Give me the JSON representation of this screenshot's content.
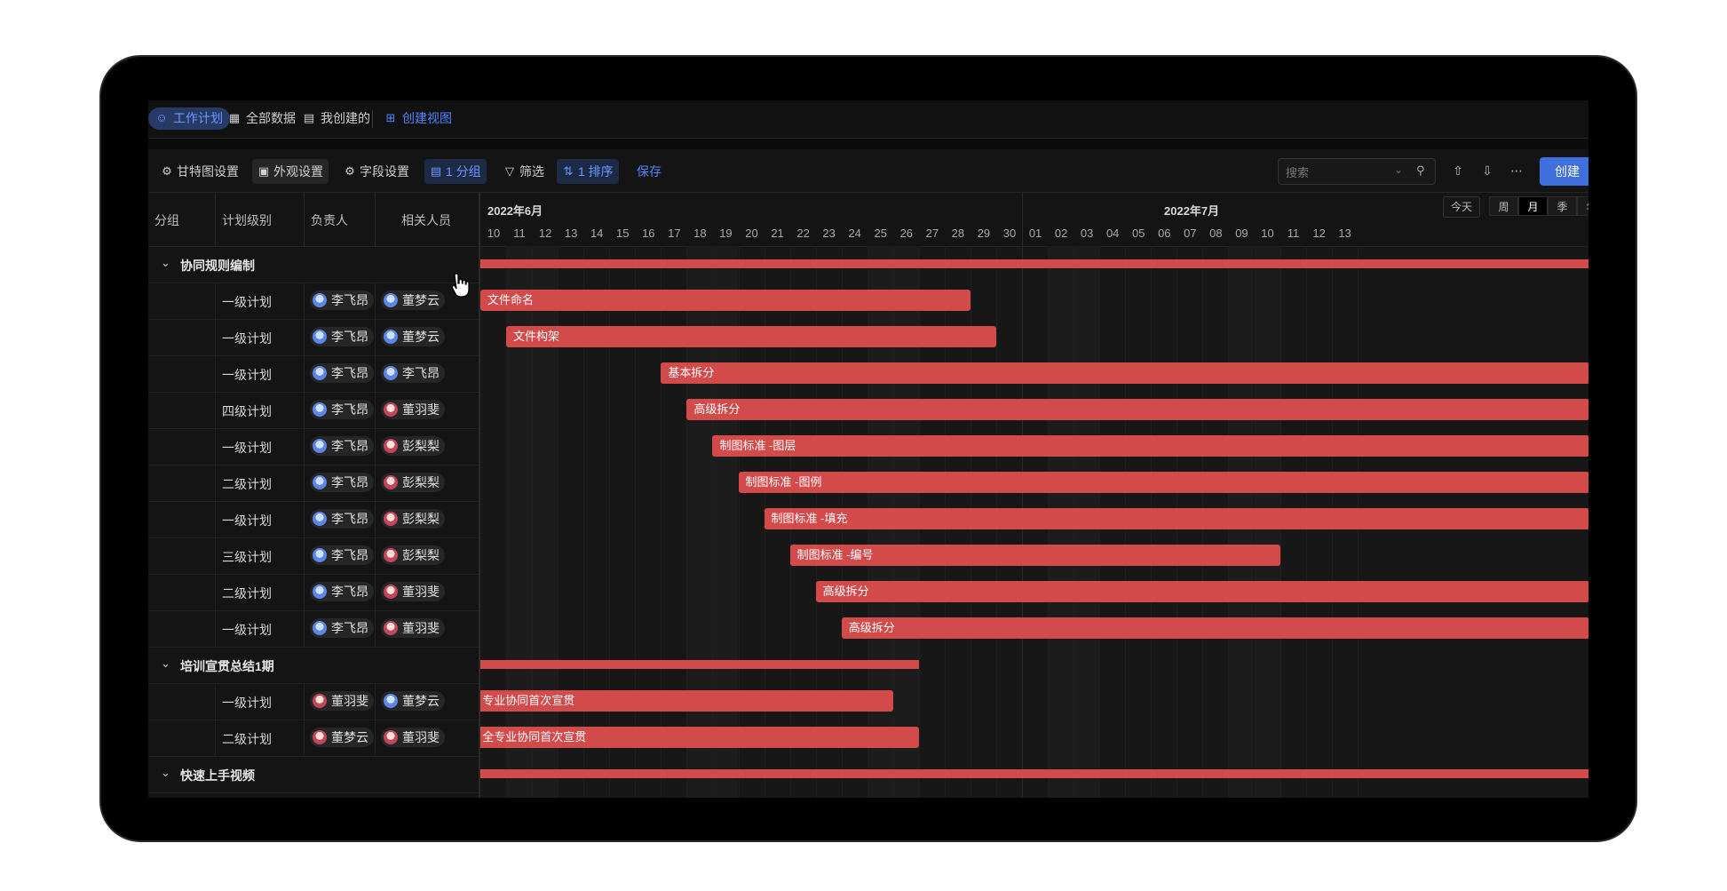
{
  "tabs": [
    {
      "label": "工作计划",
      "icon": "user-group-icon",
      "active": true
    },
    {
      "label": "全部数据",
      "icon": "grid-icon"
    },
    {
      "label": "我创建的",
      "icon": "table-icon"
    },
    {
      "label": "创建视图",
      "icon": "plus-square-icon"
    }
  ],
  "toolbar": {
    "gantt_settings": "甘特图设置",
    "appearance": "外观设置",
    "fields": "字段设置",
    "group": "1 分组",
    "filter": "筛选",
    "sort": "1 排序",
    "save": "保存",
    "search_placeholder": "搜索",
    "create": "创建"
  },
  "columns": {
    "group": "分组",
    "level": "计划级别",
    "owner": "负责人",
    "related": "相关人员"
  },
  "timeline": {
    "month1": "2022年6月",
    "month2": "2022年7月",
    "days": [
      "10",
      "11",
      "12",
      "13",
      "14",
      "15",
      "16",
      "17",
      "18",
      "19",
      "20",
      "21",
      "22",
      "23",
      "24",
      "25",
      "26",
      "27",
      "28",
      "29",
      "30",
      "01",
      "02",
      "03",
      "04",
      "05",
      "06",
      "07",
      "08",
      "09",
      "10",
      "11",
      "12",
      "13"
    ],
    "today": "今天",
    "scales": [
      "周",
      "月",
      "季",
      "年"
    ],
    "selected_scale": "月"
  },
  "groups": [
    {
      "name": "协同规则编制",
      "rows": [
        {
          "level": "一级计划",
          "owner": "李飞昂",
          "related": "董梦云",
          "task": "文件命名"
        },
        {
          "level": "一级计划",
          "owner": "李飞昂",
          "related": "董梦云",
          "task": "文件构架"
        },
        {
          "level": "一级计划",
          "owner": "李飞昂",
          "related": "李飞昂",
          "task": "基本拆分"
        },
        {
          "level": "四级计划",
          "owner": "李飞昂",
          "related": "董羽斐",
          "task": "高级拆分"
        },
        {
          "level": "一级计划",
          "owner": "李飞昂",
          "related": "彭梨梨",
          "task": "制图标准 -图层"
        },
        {
          "level": "二级计划",
          "owner": "李飞昂",
          "related": "彭梨梨",
          "task": "制图标准 -图例"
        },
        {
          "level": "一级计划",
          "owner": "李飞昂",
          "related": "彭梨梨",
          "task": "制图标准 -填充"
        },
        {
          "level": "三级计划",
          "owner": "李飞昂",
          "related": "彭梨梨",
          "task": "制图标准 -编号"
        },
        {
          "level": "二级计划",
          "owner": "李飞昂",
          "related": "董羽斐",
          "task": "高级拆分"
        },
        {
          "level": "一级计划",
          "owner": "李飞昂",
          "related": "董羽斐",
          "task": "高级拆分"
        }
      ]
    },
    {
      "name": "培训宣贯总结1期",
      "rows": [
        {
          "level": "一级计划",
          "owner": "董羽斐",
          "related": "董梦云",
          "task": "专业协同首次宣贯"
        },
        {
          "level": "二级计划",
          "owner": "董梦云",
          "related": "董羽斐",
          "task": "全专业协同首次宣贯"
        }
      ]
    },
    {
      "name": "快速上手视频",
      "rows": []
    }
  ],
  "colors": {
    "bar": "#d24a4a",
    "accent": "#3e6fdc",
    "background": "#111111"
  }
}
